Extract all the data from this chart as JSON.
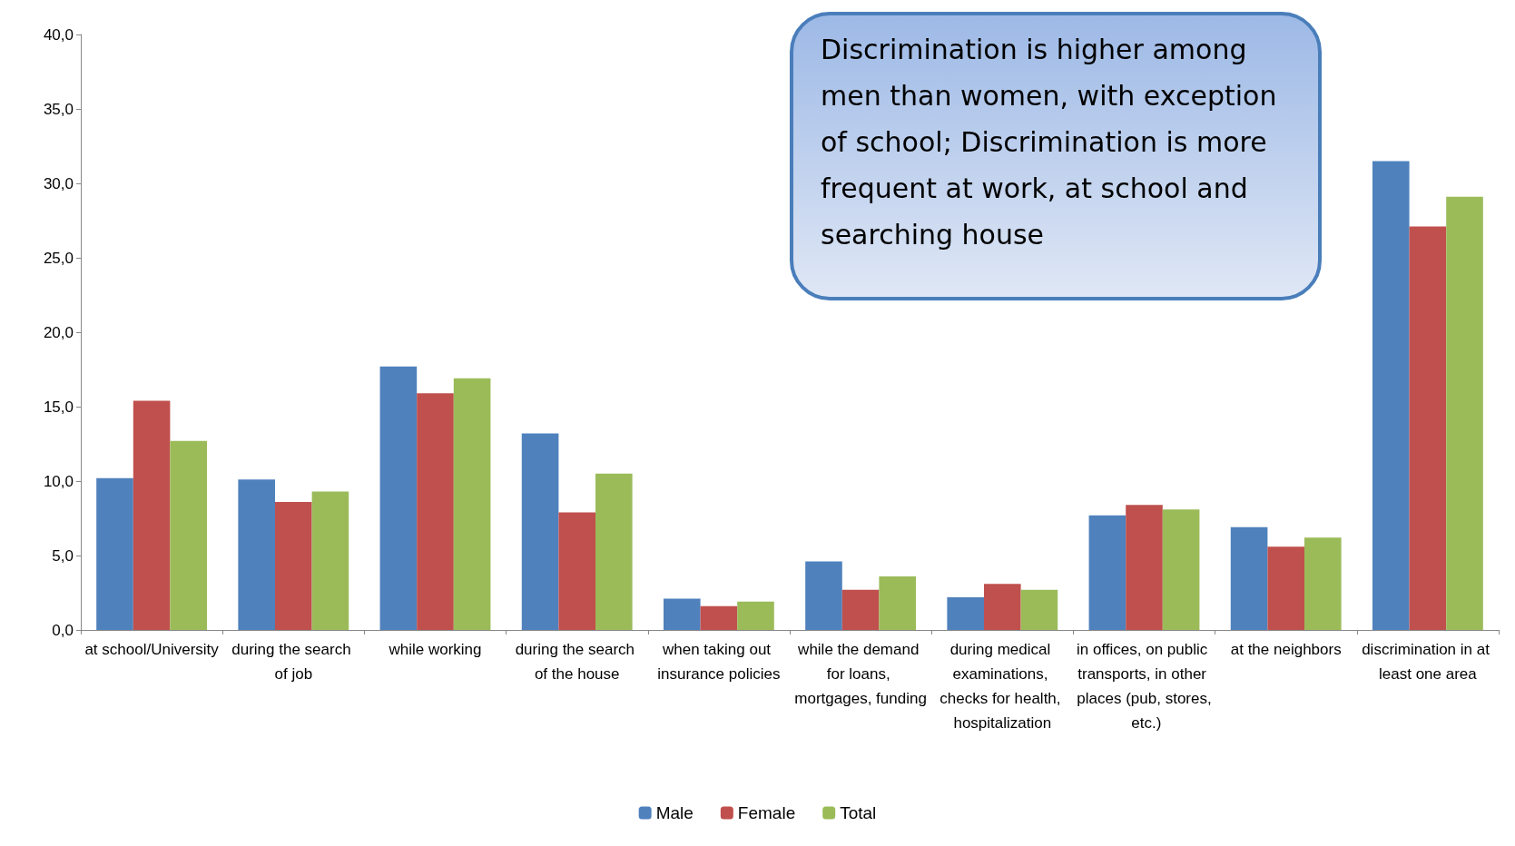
{
  "chart_data": {
    "type": "bar",
    "categories": [
      "at school/University",
      "during the search of job",
      "while working",
      "during the search of the house",
      "when taking out insurance policies",
      "while the demand for loans, mortgages, funding",
      "during medical examinations, checks for health, hospitalization",
      "in offices, on public transports, in other places (pub, stores, etc.)",
      "at the neighbors",
      "discrimination in at least one area"
    ],
    "series": [
      {
        "name": "Male",
        "color": "#4f81bd",
        "values": [
          10.2,
          10.1,
          17.7,
          13.2,
          2.1,
          4.6,
          2.2,
          7.7,
          6.9,
          31.5
        ]
      },
      {
        "name": "Female",
        "color": "#c0504d",
        "values": [
          15.4,
          8.6,
          15.9,
          7.9,
          1.6,
          2.7,
          3.1,
          8.4,
          5.6,
          27.1
        ]
      },
      {
        "name": "Total",
        "color": "#9bbb59",
        "values": [
          12.7,
          9.3,
          16.9,
          10.5,
          1.9,
          3.6,
          2.7,
          8.1,
          6.2,
          29.1
        ]
      }
    ],
    "ylim": [
      0,
      40
    ],
    "yticks": [
      {
        "value": 0,
        "label": "0,0"
      },
      {
        "value": 5,
        "label": "5,0"
      },
      {
        "value": 10,
        "label": "10,0"
      },
      {
        "value": 15,
        "label": "15,0"
      },
      {
        "value": 20,
        "label": "20,0"
      },
      {
        "value": 25,
        "label": "25,0"
      },
      {
        "value": 30,
        "label": "30,0"
      },
      {
        "value": 35,
        "label": "35,0"
      },
      {
        "value": 40,
        "label": "40,0"
      }
    ],
    "grid": false,
    "legend": "bottom",
    "annotations": [
      "Discrimination is higher among men than women, with exception of school; Discrimination is more frequent at work, at school and searching house"
    ]
  }
}
